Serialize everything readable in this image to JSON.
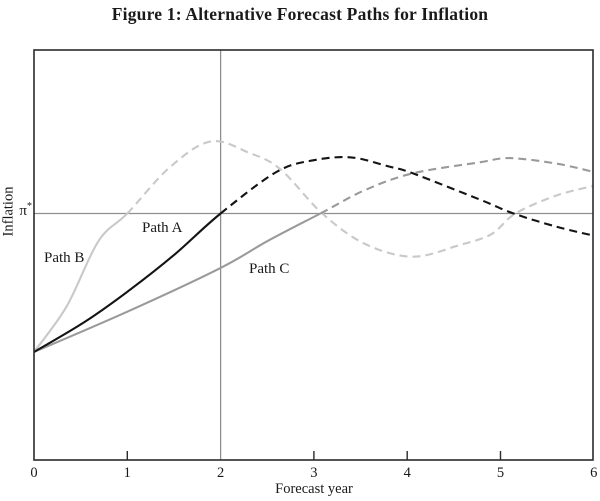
{
  "figure": {
    "title": "Figure 1: Alternative Forecast Paths for Inflation"
  },
  "chart_data": {
    "type": "line",
    "title": "Figure 1: Alternative Forecast Paths for Inflation",
    "xlabel": "Forecast year",
    "ylabel": "Inflation",
    "x_range": [
      0,
      6
    ],
    "x_ticks": [
      "0",
      "1",
      "2",
      "3",
      "4",
      "5",
      "6"
    ],
    "y_reference": {
      "base": "π",
      "sup": "*",
      "meaning": "inflation target level"
    },
    "reference_lines": {
      "vertical_at_x": 2,
      "horizontal_at_y_pistar": 1
    },
    "grid": "off",
    "legend": "inline labels on curves",
    "y_units": "relative to inflation target (start = 0, π* = 1)",
    "colors": {
      "path_a": "#141414",
      "path_b": "#c9c9c9",
      "path_c": "#9a9a9a",
      "reference": "#8f8f8f",
      "frame": "#2b2b2b"
    },
    "series": [
      {
        "name": "Path A",
        "color": "#141414",
        "solid_points": [
          [
            0,
            0
          ],
          [
            0.55,
            0.22
          ],
          [
            1.03,
            0.45
          ],
          [
            1.5,
            0.7
          ],
          [
            2,
            1.0
          ]
        ],
        "dashed_points": [
          [
            2,
            1.0
          ],
          [
            2.6,
            1.3
          ],
          [
            3.0,
            1.385
          ],
          [
            3.4,
            1.405
          ],
          [
            3.8,
            1.34
          ],
          [
            4.06,
            1.29
          ],
          [
            4.78,
            1.1
          ],
          [
            5.14,
            1.0
          ],
          [
            5.6,
            0.905
          ],
          [
            6,
            0.84
          ]
        ]
      },
      {
        "name": "Path B",
        "color": "#c9c9c9",
        "solid_points": [
          [
            0,
            0
          ],
          [
            0.35,
            0.33
          ],
          [
            0.69,
            0.8
          ],
          [
            1.0,
            1.0
          ]
        ],
        "dashed_points": [
          [
            1.0,
            1.0
          ],
          [
            1.45,
            1.33
          ],
          [
            1.89,
            1.52
          ],
          [
            2.3,
            1.44
          ],
          [
            2.64,
            1.32
          ],
          [
            3.09,
            1.0
          ],
          [
            3.55,
            0.78
          ],
          [
            4.06,
            0.688
          ],
          [
            4.55,
            0.77
          ],
          [
            4.9,
            0.85
          ],
          [
            5.16,
            1.0
          ],
          [
            5.6,
            1.13
          ],
          [
            6,
            1.2
          ]
        ]
      },
      {
        "name": "Path C",
        "color": "#9a9a9a",
        "solid_points": [
          [
            0,
            0
          ],
          [
            1.03,
            0.3
          ],
          [
            2.0,
            0.607
          ],
          [
            2.5,
            0.8
          ],
          [
            3.07,
            1.0
          ]
        ],
        "dashed_points": [
          [
            3.07,
            1.0
          ],
          [
            3.55,
            1.17
          ],
          [
            4.06,
            1.29
          ],
          [
            4.78,
            1.37
          ],
          [
            5.1,
            1.4
          ],
          [
            5.6,
            1.36
          ],
          [
            6,
            1.3
          ]
        ]
      }
    ]
  },
  "labels": {
    "path_a": "Path A",
    "path_b": "Path B",
    "path_c": "Path C",
    "xlabel": "Forecast year",
    "ylabel": "Inflation"
  }
}
